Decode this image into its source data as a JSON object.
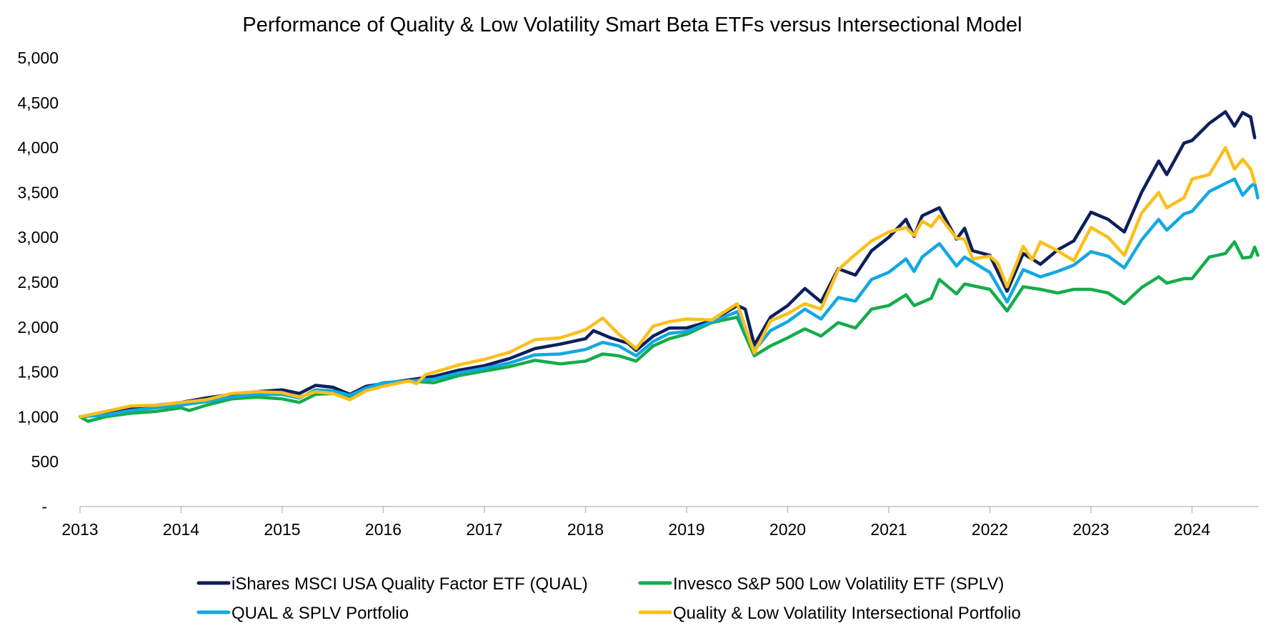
{
  "chart_data": {
    "type": "line",
    "title": "Performance of Quality & Low Volatility Smart Beta ETFs versus Intersectional Model",
    "xlabel": "",
    "ylabel": "",
    "xlim": [
      2013.0,
      2024.67
    ],
    "ylim": [
      0,
      5000
    ],
    "y_ticks": [
      0,
      500,
      1000,
      1500,
      2000,
      2500,
      3000,
      3500,
      4000,
      4500,
      5000
    ],
    "y_tick_labels": [
      "-",
      "500",
      "1,000",
      "1,500",
      "2,000",
      "2,500",
      "3,000",
      "3,500",
      "4,000",
      "4,500",
      "5,000"
    ],
    "x_ticks": [
      2013,
      2014,
      2015,
      2016,
      2017,
      2018,
      2019,
      2020,
      2021,
      2022,
      2023,
      2024
    ],
    "x_tick_labels": [
      "2013",
      "2014",
      "2015",
      "2016",
      "2017",
      "2018",
      "2019",
      "2020",
      "2021",
      "2022",
      "2023",
      "2024"
    ],
    "legend_position": "bottom",
    "grid": false,
    "series": [
      {
        "name": "iShares MSCI USA Quality Factor ETF (QUAL)",
        "color": "#0d1f5c",
        "points": [
          [
            2013.0,
            1000
          ],
          [
            2013.25,
            1040
          ],
          [
            2013.5,
            1090
          ],
          [
            2013.75,
            1130
          ],
          [
            2014.0,
            1160
          ],
          [
            2014.25,
            1210
          ],
          [
            2014.5,
            1250
          ],
          [
            2014.75,
            1280
          ],
          [
            2015.0,
            1300
          ],
          [
            2015.17,
            1260
          ],
          [
            2015.33,
            1350
          ],
          [
            2015.5,
            1330
          ],
          [
            2015.67,
            1250
          ],
          [
            2015.83,
            1340
          ],
          [
            2016.0,
            1370
          ],
          [
            2016.25,
            1410
          ],
          [
            2016.5,
            1450
          ],
          [
            2016.75,
            1520
          ],
          [
            2017.0,
            1570
          ],
          [
            2017.25,
            1650
          ],
          [
            2017.5,
            1760
          ],
          [
            2017.75,
            1810
          ],
          [
            2018.0,
            1870
          ],
          [
            2018.08,
            1960
          ],
          [
            2018.25,
            1880
          ],
          [
            2018.42,
            1820
          ],
          [
            2018.5,
            1740
          ],
          [
            2018.67,
            1900
          ],
          [
            2018.83,
            1990
          ],
          [
            2019.0,
            1990
          ],
          [
            2019.25,
            2070
          ],
          [
            2019.5,
            2240
          ],
          [
            2019.58,
            2200
          ],
          [
            2019.67,
            1800
          ],
          [
            2019.83,
            2110
          ],
          [
            2020.0,
            2240
          ],
          [
            2020.17,
            2430
          ],
          [
            2020.33,
            2280
          ],
          [
            2020.5,
            2650
          ],
          [
            2020.67,
            2580
          ],
          [
            2020.83,
            2850
          ],
          [
            2021.0,
            3000
          ],
          [
            2021.17,
            3200
          ],
          [
            2021.25,
            3010
          ],
          [
            2021.33,
            3240
          ],
          [
            2021.5,
            3330
          ],
          [
            2021.67,
            2980
          ],
          [
            2021.75,
            3100
          ],
          [
            2021.83,
            2850
          ],
          [
            2022.0,
            2800
          ],
          [
            2022.17,
            2400
          ],
          [
            2022.33,
            2820
          ],
          [
            2022.5,
            2700
          ],
          [
            2022.67,
            2860
          ],
          [
            2022.83,
            2960
          ],
          [
            2023.0,
            3280
          ],
          [
            2023.17,
            3200
          ],
          [
            2023.33,
            3060
          ],
          [
            2023.5,
            3500
          ],
          [
            2023.67,
            3850
          ],
          [
            2023.75,
            3700
          ],
          [
            2023.92,
            4050
          ],
          [
            2024.0,
            4080
          ],
          [
            2024.17,
            4270
          ],
          [
            2024.33,
            4400
          ],
          [
            2024.42,
            4240
          ],
          [
            2024.5,
            4390
          ],
          [
            2024.58,
            4340
          ],
          [
            2024.62,
            4110
          ]
        ]
      },
      {
        "name": "Invesco S&P 500 Low Volatility ETF (SPLV)",
        "color": "#14ad4b",
        "points": [
          [
            2013.0,
            1000
          ],
          [
            2013.08,
            950
          ],
          [
            2013.25,
            1000
          ],
          [
            2013.5,
            1040
          ],
          [
            2013.75,
            1060
          ],
          [
            2014.0,
            1100
          ],
          [
            2014.08,
            1070
          ],
          [
            2014.25,
            1130
          ],
          [
            2014.5,
            1200
          ],
          [
            2014.75,
            1220
          ],
          [
            2015.0,
            1200
          ],
          [
            2015.17,
            1160
          ],
          [
            2015.33,
            1250
          ],
          [
            2015.5,
            1260
          ],
          [
            2015.67,
            1220
          ],
          [
            2015.83,
            1300
          ],
          [
            2016.0,
            1380
          ],
          [
            2016.25,
            1400
          ],
          [
            2016.5,
            1380
          ],
          [
            2016.75,
            1460
          ],
          [
            2017.0,
            1510
          ],
          [
            2017.25,
            1560
          ],
          [
            2017.5,
            1630
          ],
          [
            2017.75,
            1590
          ],
          [
            2018.0,
            1620
          ],
          [
            2018.17,
            1700
          ],
          [
            2018.33,
            1680
          ],
          [
            2018.5,
            1620
          ],
          [
            2018.67,
            1790
          ],
          [
            2018.83,
            1870
          ],
          [
            2019.0,
            1920
          ],
          [
            2019.25,
            2050
          ],
          [
            2019.5,
            2110
          ],
          [
            2019.67,
            1680
          ],
          [
            2019.83,
            1790
          ],
          [
            2020.0,
            1880
          ],
          [
            2020.17,
            1980
          ],
          [
            2020.33,
            1900
          ],
          [
            2020.5,
            2050
          ],
          [
            2020.67,
            1990
          ],
          [
            2020.83,
            2200
          ],
          [
            2021.0,
            2240
          ],
          [
            2021.17,
            2360
          ],
          [
            2021.25,
            2240
          ],
          [
            2021.42,
            2320
          ],
          [
            2021.5,
            2530
          ],
          [
            2021.67,
            2370
          ],
          [
            2021.75,
            2480
          ],
          [
            2022.0,
            2420
          ],
          [
            2022.17,
            2180
          ],
          [
            2022.33,
            2450
          ],
          [
            2022.5,
            2420
          ],
          [
            2022.67,
            2380
          ],
          [
            2022.83,
            2420
          ],
          [
            2023.0,
            2420
          ],
          [
            2023.17,
            2380
          ],
          [
            2023.33,
            2260
          ],
          [
            2023.5,
            2440
          ],
          [
            2023.67,
            2560
          ],
          [
            2023.75,
            2490
          ],
          [
            2023.92,
            2540
          ],
          [
            2024.0,
            2540
          ],
          [
            2024.17,
            2780
          ],
          [
            2024.33,
            2820
          ],
          [
            2024.42,
            2950
          ],
          [
            2024.5,
            2770
          ],
          [
            2024.58,
            2780
          ],
          [
            2024.62,
            2890
          ],
          [
            2024.65,
            2800
          ]
        ]
      },
      {
        "name": "QUAL & SPLV Portfolio",
        "color": "#12a8e2",
        "points": [
          [
            2013.0,
            1000
          ],
          [
            2013.25,
            1020
          ],
          [
            2013.5,
            1070
          ],
          [
            2013.75,
            1100
          ],
          [
            2014.0,
            1130
          ],
          [
            2014.25,
            1170
          ],
          [
            2014.5,
            1220
          ],
          [
            2014.75,
            1250
          ],
          [
            2015.0,
            1250
          ],
          [
            2015.17,
            1210
          ],
          [
            2015.33,
            1300
          ],
          [
            2015.5,
            1290
          ],
          [
            2015.67,
            1240
          ],
          [
            2015.83,
            1320
          ],
          [
            2016.0,
            1380
          ],
          [
            2016.25,
            1400
          ],
          [
            2016.5,
            1420
          ],
          [
            2016.75,
            1490
          ],
          [
            2017.0,
            1540
          ],
          [
            2017.25,
            1600
          ],
          [
            2017.5,
            1690
          ],
          [
            2017.75,
            1700
          ],
          [
            2018.0,
            1750
          ],
          [
            2018.17,
            1830
          ],
          [
            2018.33,
            1790
          ],
          [
            2018.5,
            1680
          ],
          [
            2018.67,
            1840
          ],
          [
            2018.83,
            1930
          ],
          [
            2019.0,
            1950
          ],
          [
            2019.25,
            2060
          ],
          [
            2019.5,
            2170
          ],
          [
            2019.67,
            1740
          ],
          [
            2019.83,
            1960
          ],
          [
            2020.0,
            2060
          ],
          [
            2020.17,
            2200
          ],
          [
            2020.33,
            2090
          ],
          [
            2020.5,
            2330
          ],
          [
            2020.67,
            2290
          ],
          [
            2020.83,
            2530
          ],
          [
            2021.0,
            2610
          ],
          [
            2021.17,
            2760
          ],
          [
            2021.25,
            2620
          ],
          [
            2021.33,
            2780
          ],
          [
            2021.5,
            2930
          ],
          [
            2021.67,
            2680
          ],
          [
            2021.75,
            2780
          ],
          [
            2022.0,
            2610
          ],
          [
            2022.17,
            2280
          ],
          [
            2022.33,
            2640
          ],
          [
            2022.5,
            2560
          ],
          [
            2022.67,
            2620
          ],
          [
            2022.83,
            2690
          ],
          [
            2023.0,
            2840
          ],
          [
            2023.17,
            2790
          ],
          [
            2023.33,
            2660
          ],
          [
            2023.5,
            2970
          ],
          [
            2023.67,
            3200
          ],
          [
            2023.75,
            3080
          ],
          [
            2023.92,
            3260
          ],
          [
            2024.0,
            3290
          ],
          [
            2024.17,
            3510
          ],
          [
            2024.33,
            3600
          ],
          [
            2024.42,
            3650
          ],
          [
            2024.5,
            3470
          ],
          [
            2024.58,
            3570
          ],
          [
            2024.62,
            3600
          ],
          [
            2024.65,
            3440
          ]
        ]
      },
      {
        "name": "Quality & Low Volatility Intersectional Portfolio",
        "color": "#fbbf1a",
        "points": [
          [
            2013.0,
            1000
          ],
          [
            2013.25,
            1060
          ],
          [
            2013.5,
            1120
          ],
          [
            2013.75,
            1130
          ],
          [
            2014.0,
            1160
          ],
          [
            2014.25,
            1190
          ],
          [
            2014.5,
            1260
          ],
          [
            2014.75,
            1280
          ],
          [
            2015.0,
            1270
          ],
          [
            2015.17,
            1220
          ],
          [
            2015.33,
            1280
          ],
          [
            2015.5,
            1260
          ],
          [
            2015.67,
            1190
          ],
          [
            2015.83,
            1290
          ],
          [
            2016.0,
            1340
          ],
          [
            2016.25,
            1400
          ],
          [
            2016.33,
            1370
          ],
          [
            2016.42,
            1470
          ],
          [
            2016.75,
            1580
          ],
          [
            2017.0,
            1640
          ],
          [
            2017.25,
            1720
          ],
          [
            2017.5,
            1860
          ],
          [
            2017.75,
            1880
          ],
          [
            2018.0,
            1970
          ],
          [
            2018.17,
            2100
          ],
          [
            2018.33,
            1920
          ],
          [
            2018.5,
            1760
          ],
          [
            2018.67,
            2010
          ],
          [
            2018.83,
            2060
          ],
          [
            2019.0,
            2090
          ],
          [
            2019.25,
            2080
          ],
          [
            2019.5,
            2260
          ],
          [
            2019.67,
            1710
          ],
          [
            2019.83,
            2070
          ],
          [
            2020.0,
            2150
          ],
          [
            2020.17,
            2260
          ],
          [
            2020.33,
            2200
          ],
          [
            2020.5,
            2640
          ],
          [
            2020.67,
            2810
          ],
          [
            2020.83,
            2960
          ],
          [
            2021.0,
            3060
          ],
          [
            2021.17,
            3110
          ],
          [
            2021.25,
            3020
          ],
          [
            2021.33,
            3180
          ],
          [
            2021.42,
            3120
          ],
          [
            2021.5,
            3240
          ],
          [
            2021.67,
            2990
          ],
          [
            2021.75,
            2980
          ],
          [
            2021.83,
            2760
          ],
          [
            2022.0,
            2790
          ],
          [
            2022.08,
            2710
          ],
          [
            2022.17,
            2450
          ],
          [
            2022.33,
            2900
          ],
          [
            2022.42,
            2750
          ],
          [
            2022.5,
            2950
          ],
          [
            2022.67,
            2850
          ],
          [
            2022.83,
            2740
          ],
          [
            2023.0,
            3110
          ],
          [
            2023.17,
            3000
          ],
          [
            2023.33,
            2800
          ],
          [
            2023.5,
            3270
          ],
          [
            2023.67,
            3500
          ],
          [
            2023.75,
            3330
          ],
          [
            2023.92,
            3440
          ],
          [
            2024.0,
            3650
          ],
          [
            2024.17,
            3700
          ],
          [
            2024.33,
            4000
          ],
          [
            2024.42,
            3760
          ],
          [
            2024.5,
            3870
          ],
          [
            2024.58,
            3760
          ],
          [
            2024.62,
            3610
          ]
        ]
      }
    ]
  }
}
